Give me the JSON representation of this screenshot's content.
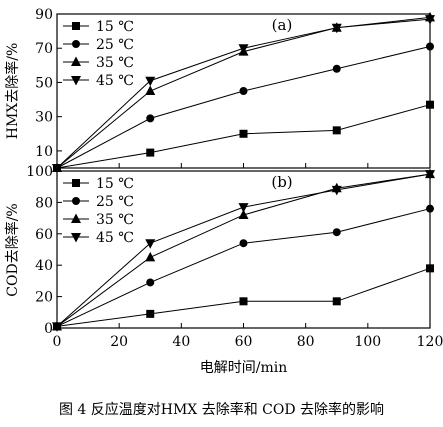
{
  "caption": "图 4   反应温度对HMX 去除率和 COD 去除率的影响",
  "chart_data": [
    {
      "type": "line",
      "panel_label": "(a)",
      "xlabel": "",
      "ylabel": "HMX去除率/%",
      "xlim": [
        0,
        120
      ],
      "ylim": [
        0,
        90
      ],
      "yticks": [
        10,
        30,
        50,
        70,
        90
      ],
      "xticks": [],
      "grid": false,
      "legend_position": "top-left",
      "x": [
        0,
        30,
        60,
        90,
        120
      ],
      "series": [
        {
          "name": "15 ℃",
          "marker": "square",
          "values": [
            0,
            9,
            20,
            22,
            37
          ]
        },
        {
          "name": "25 ℃",
          "marker": "circle",
          "values": [
            0,
            29,
            45,
            58,
            71
          ]
        },
        {
          "name": "35 ℃",
          "marker": "triangle-up",
          "values": [
            0,
            45,
            68,
            82,
            88
          ]
        },
        {
          "name": "45 ℃",
          "marker": "triangle-down",
          "values": [
            0,
            51,
            70,
            82,
            87
          ]
        }
      ]
    },
    {
      "type": "line",
      "panel_label": "(b)",
      "xlabel": "电解时间/min",
      "ylabel": "COD去除率/%",
      "xlim": [
        0,
        120
      ],
      "ylim": [
        0,
        100
      ],
      "yticks": [
        0,
        20,
        40,
        60,
        80,
        100
      ],
      "xticks": [
        0,
        20,
        40,
        60,
        80,
        100,
        120
      ],
      "grid": false,
      "legend_position": "top-left",
      "x": [
        0,
        30,
        60,
        90,
        120
      ],
      "series": [
        {
          "name": "15 ℃",
          "marker": "square",
          "values": [
            1,
            9,
            17,
            17,
            38
          ]
        },
        {
          "name": "25 ℃",
          "marker": "circle",
          "values": [
            1,
            29,
            54,
            61,
            76
          ]
        },
        {
          "name": "35 ℃",
          "marker": "triangle-up",
          "values": [
            1,
            45,
            72,
            89,
            98
          ]
        },
        {
          "name": "45 ℃",
          "marker": "triangle-down",
          "values": [
            1,
            54,
            77,
            88,
            98
          ]
        }
      ]
    }
  ]
}
